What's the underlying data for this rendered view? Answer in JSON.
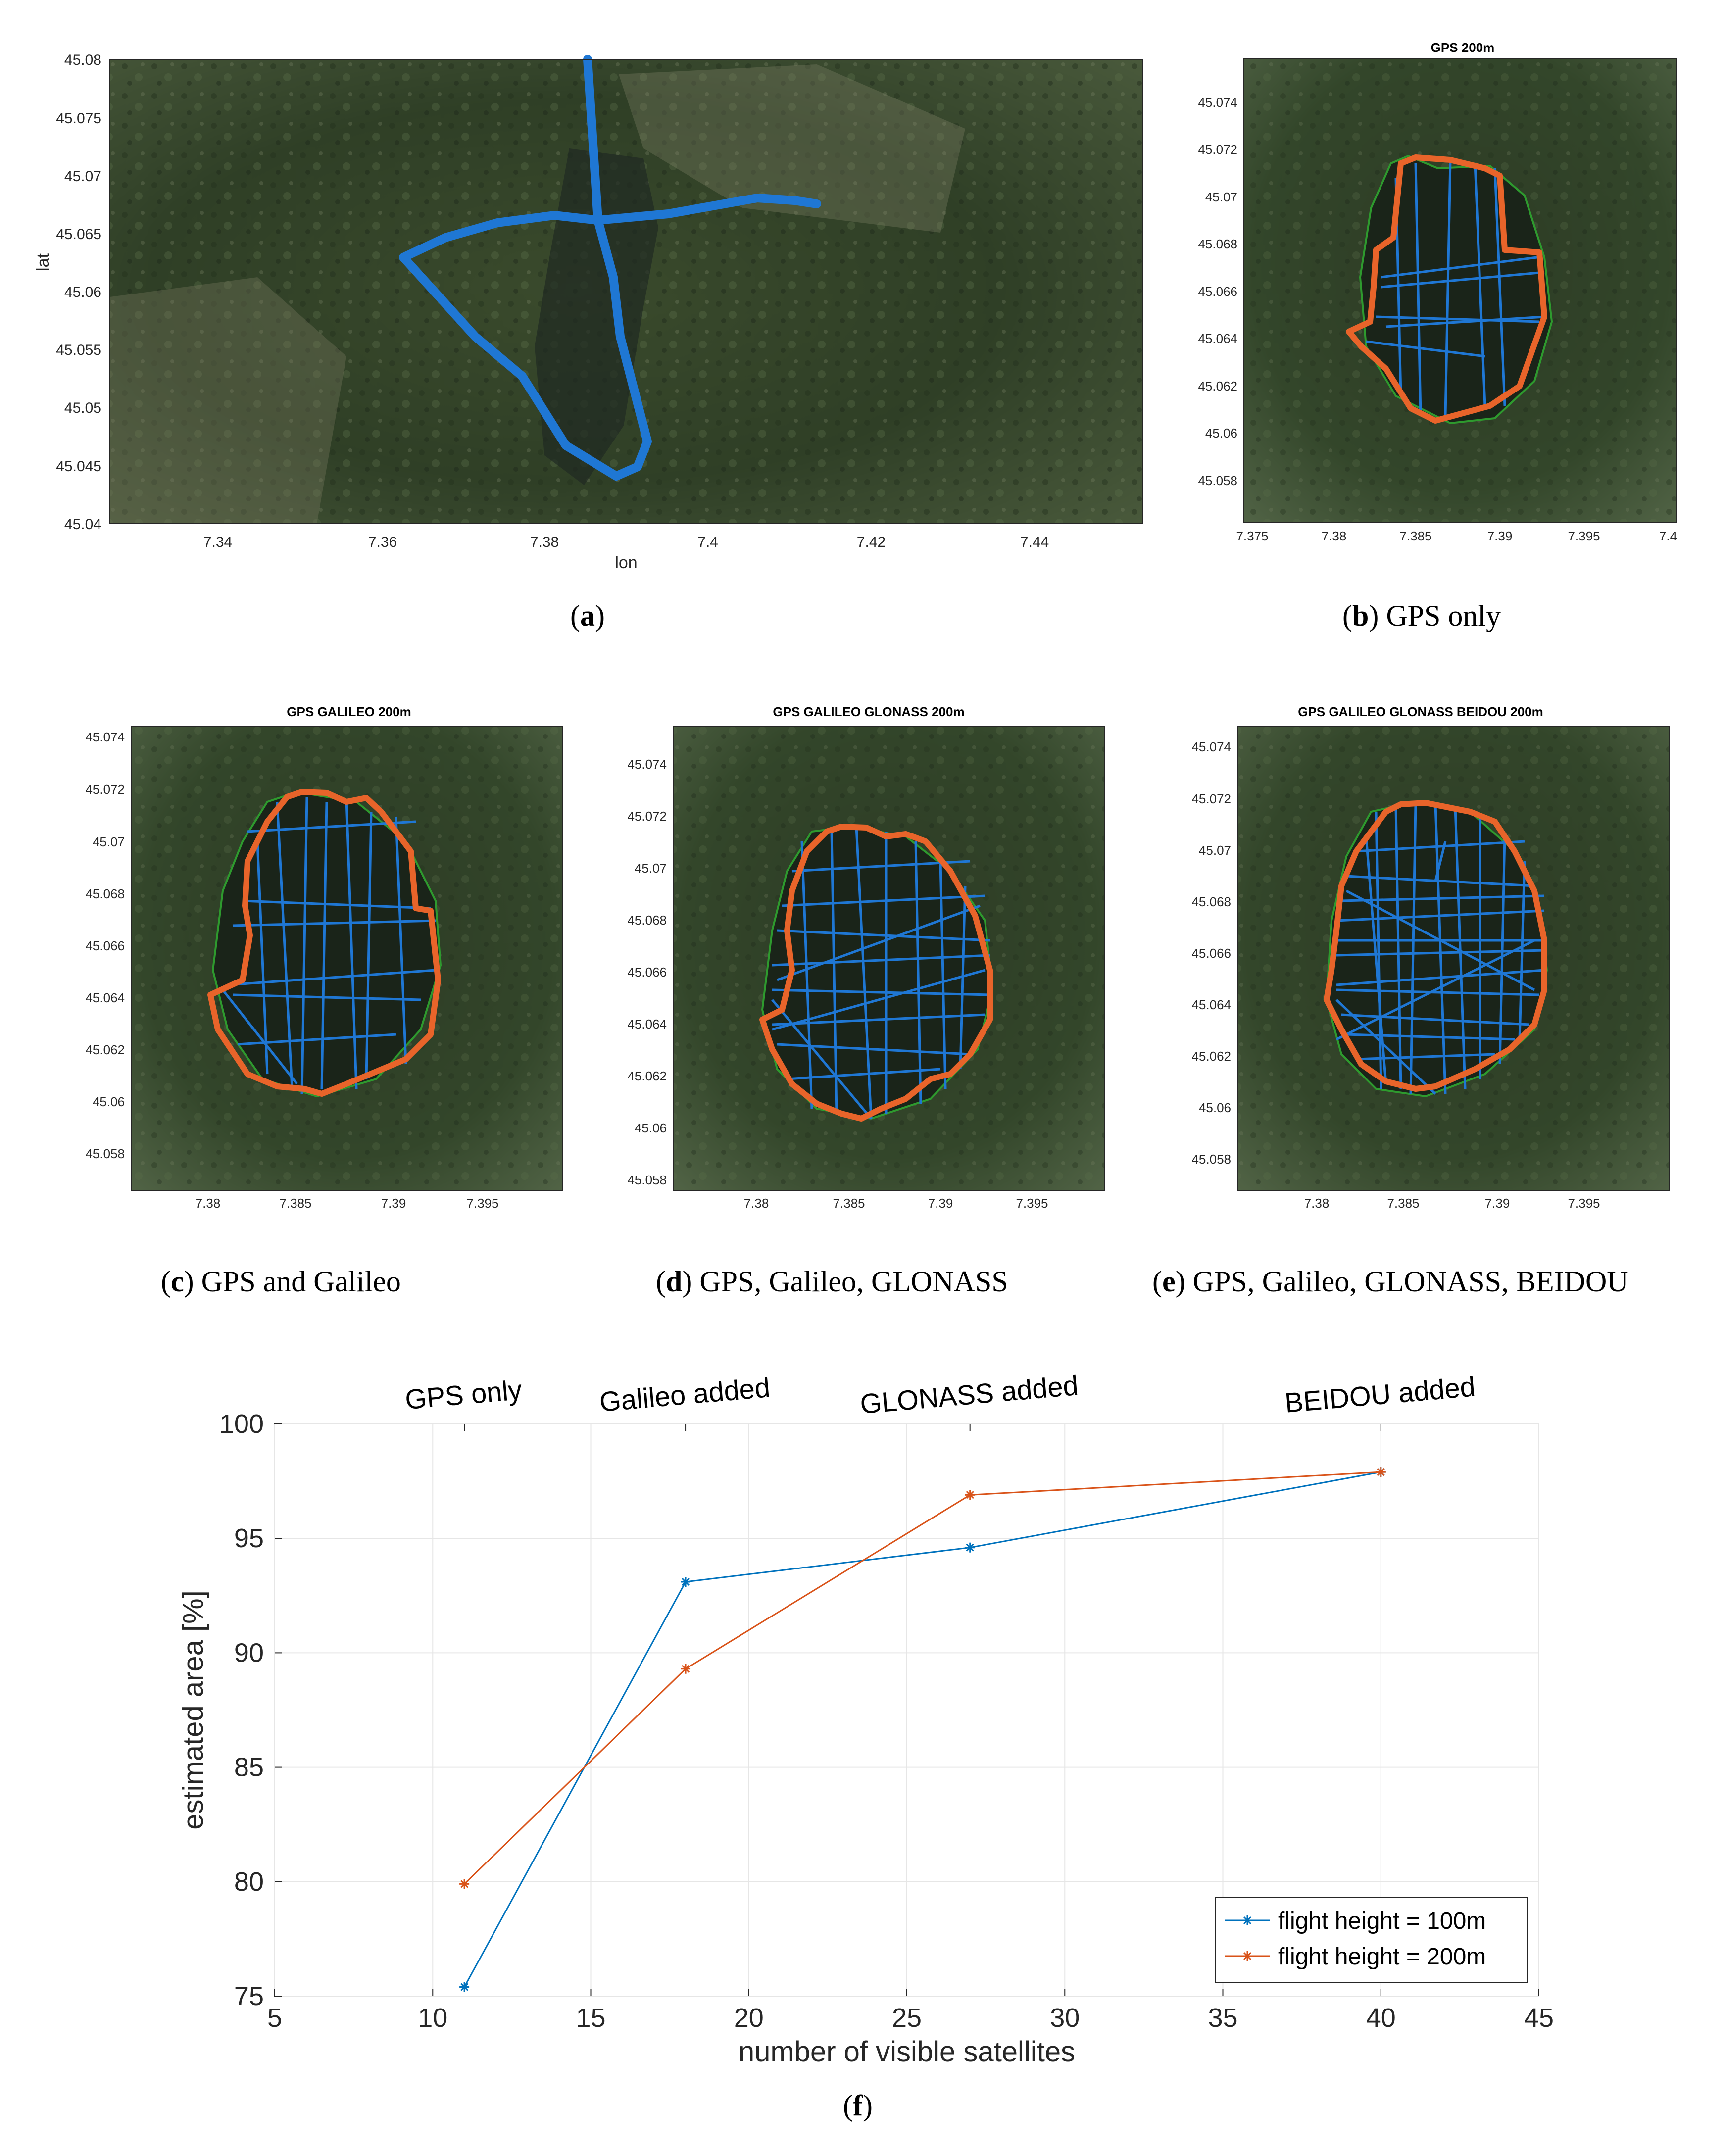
{
  "panels": {
    "a": {
      "caption_letter": "a",
      "caption_text": "",
      "xlabel": "lon",
      "ylabel": "lat",
      "xticks": [
        "7.34",
        "7.36",
        "7.38",
        "7.4",
        "7.42",
        "7.44"
      ],
      "yticks": [
        "45.08",
        "45.075",
        "45.07",
        "45.065",
        "45.06",
        "45.055",
        "45.05",
        "45.045",
        "45.04"
      ]
    },
    "b": {
      "caption_letter": "b",
      "caption_text": "GPS only",
      "title": "GPS 200m",
      "xticks": [
        "7.375",
        "7.38",
        "7.385",
        "7.39",
        "7.395",
        "7.4"
      ],
      "yticks": [
        "45.074",
        "45.072",
        "45.07",
        "45.068",
        "45.066",
        "45.064",
        "45.062",
        "45.06",
        "45.058"
      ]
    },
    "c": {
      "caption_letter": "c",
      "caption_text": "GPS and Galileo",
      "title": "GPS  GALILEO 200m",
      "xticks": [
        "7.38",
        "7.385",
        "7.39",
        "7.395"
      ],
      "yticks": [
        "45.074",
        "45.072",
        "45.07",
        "45.068",
        "45.066",
        "45.064",
        "45.062",
        "45.06",
        "45.058"
      ]
    },
    "d": {
      "caption_letter": "d",
      "caption_text": "GPS, Galileo, GLONASS",
      "title": "GPS  GALILEO  GLONASS 200m",
      "xticks": [
        "7.38",
        "7.385",
        "7.39",
        "7.395"
      ],
      "yticks": [
        "45.074",
        "45.072",
        "45.07",
        "45.068",
        "45.066",
        "45.064",
        "45.062",
        "45.06",
        "45.058"
      ]
    },
    "e": {
      "caption_letter": "e",
      "caption_text": "GPS, Galileo, GLONASS, BEIDOU",
      "title": "GPS  GALILEO  GLONASS  BEIDOU 200m",
      "xticks": [
        "7.38",
        "7.385",
        "7.39",
        "7.395"
      ],
      "yticks": [
        "45.074",
        "45.072",
        "45.07",
        "45.068",
        "45.066",
        "45.064",
        "45.062",
        "45.06",
        "45.058"
      ]
    },
    "f": {
      "caption_letter": "f",
      "caption_text": ""
    }
  },
  "colors": {
    "flight_100": "#0072BD",
    "flight_200": "#D95319",
    "path": "#1f77d4",
    "outline": "#e8642a",
    "reference": "#2e9a2e"
  },
  "chart_data": {
    "type": "line",
    "xlabel": "number of visible satellites",
    "ylabel": "estimated area [%]",
    "xlim": [
      5,
      45
    ],
    "ylim": [
      75,
      100
    ],
    "xticks": [
      5,
      10,
      15,
      20,
      25,
      30,
      35,
      40,
      45
    ],
    "yticks": [
      75,
      80,
      85,
      90,
      95,
      100
    ],
    "grid": true,
    "legend_position": "bottom-right",
    "top_axis_labels": [
      {
        "x": 11,
        "label": "GPS only"
      },
      {
        "x": 18,
        "label": "Galileo added"
      },
      {
        "x": 27,
        "label": "GLONASS added"
      },
      {
        "x": 40,
        "label": "BEIDOU added"
      }
    ],
    "series": [
      {
        "name": "flight height = 100m",
        "color": "#0072BD",
        "x": [
          11,
          18,
          27,
          40
        ],
        "y": [
          75.4,
          93.1,
          94.6,
          97.9
        ]
      },
      {
        "name": "flight height = 200m",
        "color": "#D95319",
        "x": [
          11,
          18,
          27,
          40
        ],
        "y": [
          79.9,
          89.3,
          96.9,
          97.9
        ]
      }
    ]
  }
}
